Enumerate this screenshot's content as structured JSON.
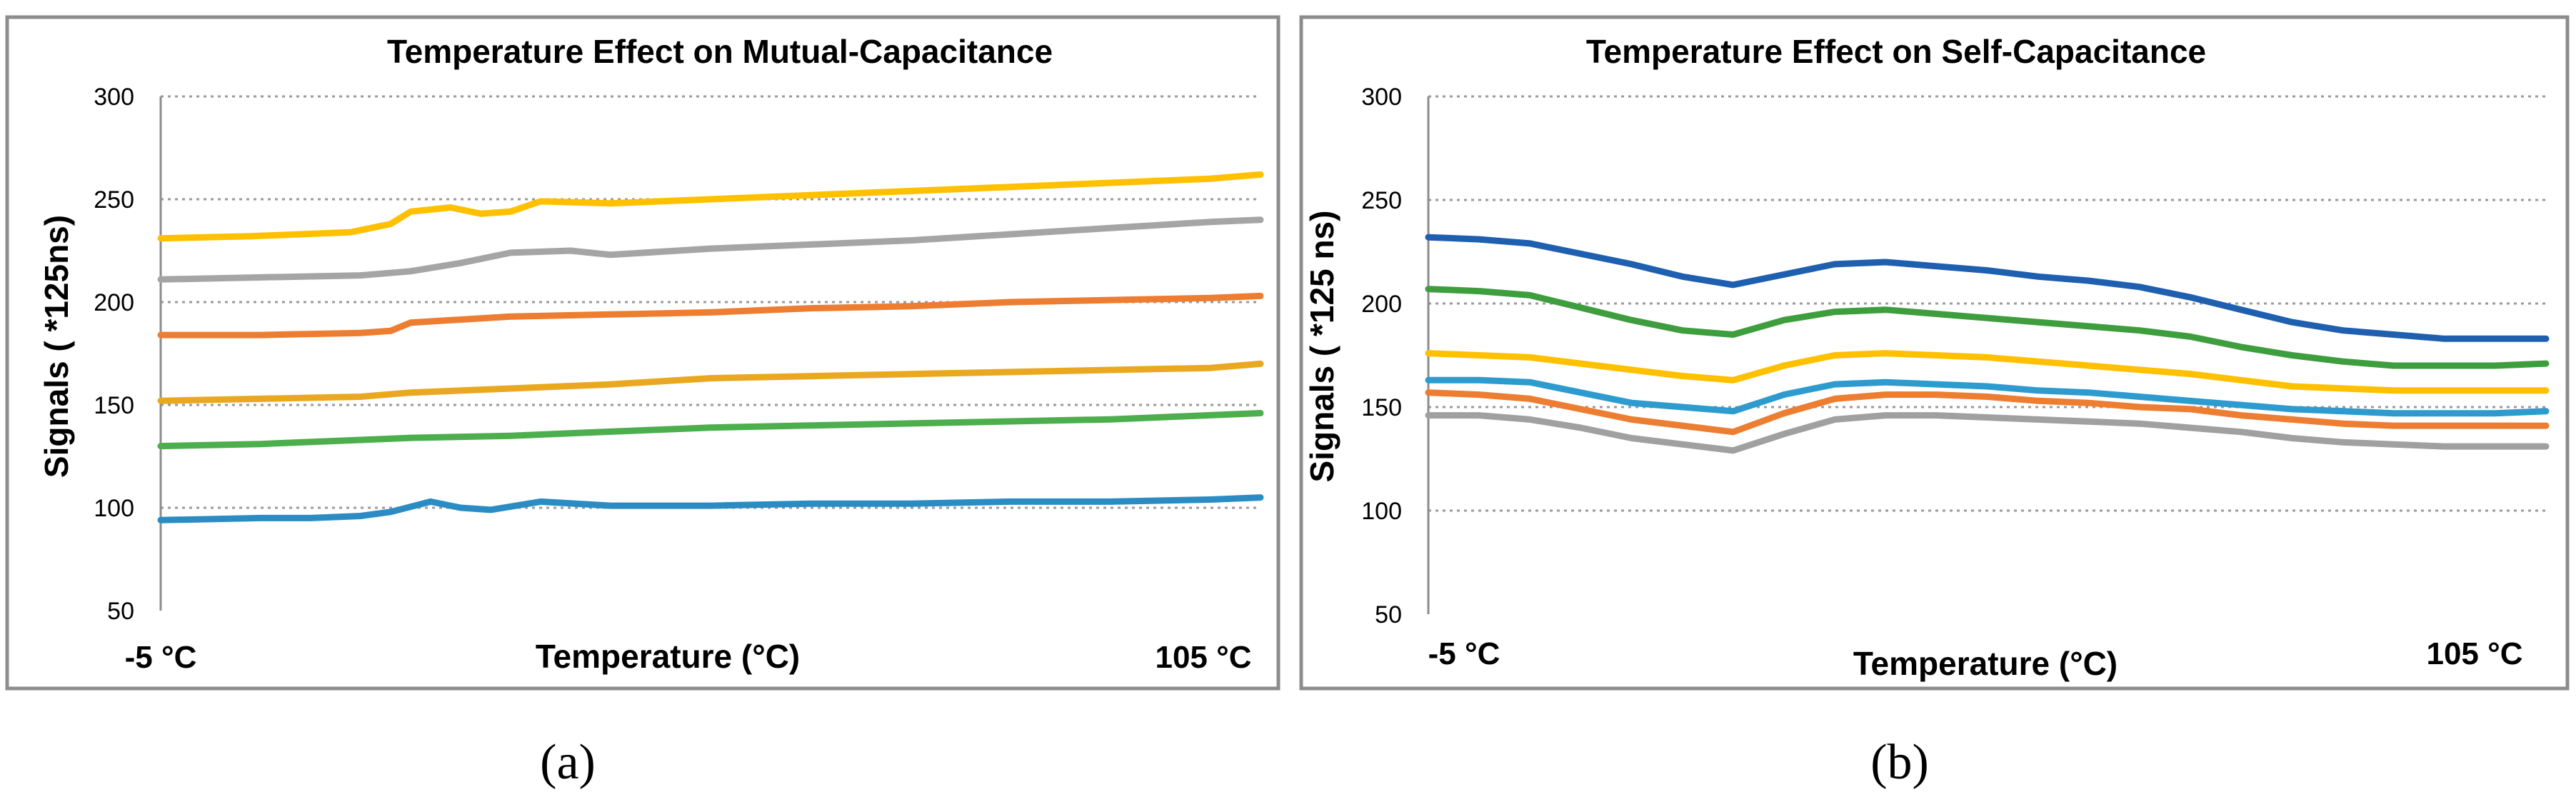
{
  "captions": [
    "(a)",
    "(b)"
  ],
  "chart_data": [
    {
      "type": "line",
      "title": "Temperature Effect on Mutual-Capacitance",
      "xlabel": "Temperature (°C)",
      "ylabel": "Signals ( *125ns)",
      "x_tick_labels": [
        "-5 °C",
        "105 °C"
      ],
      "xlim": [
        -5,
        105
      ],
      "ylim": [
        50,
        300
      ],
      "y_ticks": [
        50,
        100,
        150,
        200,
        250,
        300
      ],
      "grid": true,
      "legend": "none",
      "series": [
        {
          "color": "#FFC000",
          "x": [
            -5,
            4,
            14,
            18,
            20,
            24,
            27,
            30,
            33,
            40,
            50,
            60,
            70,
            80,
            90,
            100,
            105
          ],
          "values": [
            231,
            232,
            234,
            238,
            244,
            246,
            243,
            244,
            249,
            248,
            250,
            252,
            254,
            256,
            258,
            260,
            262
          ]
        },
        {
          "color": "#A5A5A5",
          "x": [
            -5,
            5,
            15,
            20,
            25,
            30,
            36,
            40,
            50,
            60,
            70,
            80,
            90,
            100,
            105
          ],
          "values": [
            211,
            212,
            213,
            215,
            219,
            224,
            225,
            223,
            226,
            228,
            230,
            233,
            236,
            239,
            240
          ]
        },
        {
          "color": "#ED7D31",
          "x": [
            -5,
            5,
            15,
            18,
            20,
            30,
            40,
            50,
            60,
            70,
            80,
            90,
            100,
            105
          ],
          "values": [
            184,
            184,
            185,
            186,
            190,
            193,
            194,
            195,
            197,
            198,
            200,
            201,
            202,
            203
          ]
        },
        {
          "color": "#E9A820",
          "x": [
            -5,
            5,
            15,
            20,
            30,
            40,
            50,
            60,
            70,
            80,
            90,
            100,
            105
          ],
          "values": [
            152,
            153,
            154,
            156,
            158,
            160,
            163,
            164,
            165,
            166,
            167,
            168,
            170
          ]
        },
        {
          "color": "#4CAE4C",
          "x": [
            -5,
            5,
            15,
            20,
            30,
            40,
            50,
            60,
            70,
            80,
            90,
            100,
            105
          ],
          "values": [
            130,
            131,
            133,
            134,
            135,
            137,
            139,
            140,
            141,
            142,
            143,
            145,
            146
          ]
        },
        {
          "color": "#2B8CC4",
          "x": [
            -5,
            5,
            10,
            15,
            18,
            22,
            25,
            28,
            33,
            40,
            50,
            60,
            70,
            80,
            90,
            100,
            105
          ],
          "values": [
            94,
            95,
            95,
            96,
            98,
            103,
            100,
            99,
            103,
            101,
            101,
            102,
            102,
            103,
            103,
            104,
            105
          ]
        }
      ]
    },
    {
      "type": "line",
      "title": "Temperature Effect on Self-Capacitance",
      "xlabel": "Temperature (°C)",
      "ylabel": "Signals ( *125 ns)",
      "x_tick_labels": [
        "-5 °C",
        "105 °C"
      ],
      "xlim": [
        -5,
        105
      ],
      "ylim": [
        50,
        300
      ],
      "y_ticks": [
        50,
        100,
        150,
        200,
        250,
        300
      ],
      "grid": true,
      "legend": "none",
      "series": [
        {
          "color": "#1F5FB0",
          "x": [
            -5,
            0,
            5,
            10,
            15,
            20,
            25,
            30,
            35,
            40,
            45,
            50,
            55,
            60,
            65,
            70,
            75,
            80,
            85,
            90,
            95,
            100,
            105
          ],
          "values": [
            232,
            231,
            229,
            224,
            219,
            213,
            209,
            214,
            219,
            220,
            218,
            216,
            213,
            211,
            208,
            203,
            197,
            191,
            187,
            185,
            183,
            183,
            183
          ]
        },
        {
          "color": "#3E9E3E",
          "x": [
            -5,
            0,
            5,
            10,
            15,
            20,
            25,
            30,
            35,
            40,
            45,
            50,
            55,
            60,
            65,
            70,
            75,
            80,
            85,
            90,
            95,
            100,
            105
          ],
          "values": [
            207,
            206,
            204,
            198,
            192,
            187,
            185,
            192,
            196,
            197,
            195,
            193,
            191,
            189,
            187,
            184,
            179,
            175,
            172,
            170,
            170,
            170,
            171
          ]
        },
        {
          "color": "#FFC000",
          "x": [
            -5,
            0,
            5,
            10,
            15,
            20,
            25,
            30,
            35,
            40,
            45,
            50,
            55,
            60,
            65,
            70,
            75,
            80,
            85,
            90,
            95,
            100,
            105
          ],
          "values": [
            176,
            175,
            174,
            171,
            168,
            165,
            163,
            170,
            175,
            176,
            175,
            174,
            172,
            170,
            168,
            166,
            163,
            160,
            159,
            158,
            158,
            158,
            158
          ]
        },
        {
          "color": "#2E9BCF",
          "x": [
            -5,
            0,
            5,
            10,
            15,
            20,
            25,
            30,
            35,
            40,
            45,
            50,
            55,
            60,
            65,
            70,
            75,
            80,
            85,
            90,
            95,
            100,
            105
          ],
          "values": [
            163,
            163,
            162,
            157,
            152,
            150,
            148,
            156,
            161,
            162,
            161,
            160,
            158,
            157,
            155,
            153,
            151,
            149,
            148,
            147,
            147,
            147,
            148
          ]
        },
        {
          "color": "#ED7D31",
          "x": [
            -5,
            0,
            5,
            10,
            15,
            20,
            25,
            30,
            35,
            40,
            45,
            50,
            55,
            60,
            65,
            70,
            75,
            80,
            85,
            90,
            95,
            100,
            105
          ],
          "values": [
            157,
            156,
            154,
            149,
            144,
            141,
            138,
            147,
            154,
            156,
            156,
            155,
            153,
            152,
            150,
            149,
            146,
            144,
            142,
            141,
            141,
            141,
            141
          ]
        },
        {
          "color": "#A0A0A0",
          "x": [
            -5,
            0,
            5,
            10,
            15,
            20,
            25,
            30,
            35,
            40,
            45,
            50,
            55,
            60,
            65,
            70,
            75,
            80,
            85,
            90,
            95,
            100,
            105
          ],
          "values": [
            146,
            146,
            144,
            140,
            135,
            132,
            129,
            137,
            144,
            146,
            146,
            145,
            144,
            143,
            142,
            140,
            138,
            135,
            133,
            132,
            131,
            131,
            131
          ]
        }
      ]
    }
  ]
}
